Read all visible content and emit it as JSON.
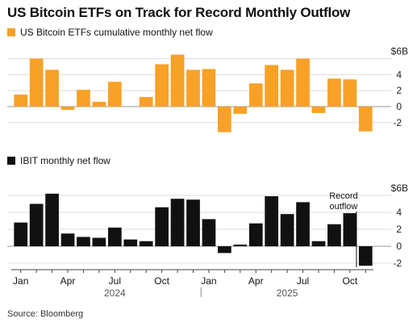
{
  "title": "US Bitcoin ETFs on Track for Record Monthly Outflow",
  "source": "Source: Bloomberg",
  "chart_data": [
    {
      "type": "bar",
      "name": "US Bitcoin ETFs cumulative monthly net flow",
      "color": "#f7a127",
      "categories": [
        "Jan 2024",
        "Feb 2024",
        "Mar 2024",
        "Apr 2024",
        "May 2024",
        "Jun 2024",
        "Jul 2024",
        "Aug 2024",
        "Sep 2024",
        "Oct 2024",
        "Nov 2024",
        "Dec 2024",
        "Jan 2025",
        "Feb 2025",
        "Mar 2025",
        "Apr 2025",
        "May 2025",
        "Jun 2025",
        "Jul 2025",
        "Aug 2025",
        "Sep 2025",
        "Oct 2025",
        "Nov 2025"
      ],
      "values": [
        1.5,
        6.0,
        4.6,
        -0.4,
        2.1,
        0.6,
        3.1,
        0.0,
        1.2,
        5.3,
        6.5,
        4.6,
        4.7,
        -3.2,
        -0.9,
        2.9,
        5.2,
        4.6,
        6.0,
        -0.8,
        3.5,
        3.4,
        -3.1
      ],
      "ylim": [
        -3,
        6.5
      ],
      "yticks": [
        -2,
        0,
        2,
        4
      ],
      "ytick_labels": [
        "-2",
        "0",
        "2",
        "4"
      ],
      "unit_label": "$6B",
      "grid": true
    },
    {
      "type": "bar",
      "name": "IBIT monthly net flow",
      "color": "#111111",
      "categories": [
        "Jan 2024",
        "Feb 2024",
        "Mar 2024",
        "Apr 2024",
        "May 2024",
        "Jun 2024",
        "Jul 2024",
        "Aug 2024",
        "Sep 2024",
        "Oct 2024",
        "Nov 2024",
        "Dec 2024",
        "Jan 2025",
        "Feb 2025",
        "Mar 2025",
        "Apr 2025",
        "May 2025",
        "Jun 2025",
        "Jul 2025",
        "Aug 2025",
        "Sep 2025",
        "Oct 2025",
        "Nov 2025"
      ],
      "values": [
        2.8,
        5.0,
        6.2,
        1.5,
        1.1,
        1.0,
        2.2,
        0.8,
        0.6,
        4.6,
        5.6,
        5.5,
        3.2,
        -0.8,
        0.2,
        2.7,
        5.9,
        3.8,
        5.2,
        0.6,
        2.6,
        3.9,
        -2.3
      ],
      "ylim": [
        -2.5,
        6.5
      ],
      "yticks": [
        -2,
        0,
        2,
        4
      ],
      "ytick_labels": [
        "-2",
        "0",
        "2",
        "4"
      ],
      "unit_label": "$6B",
      "grid": true,
      "annotation": {
        "text": [
          "Record",
          "outflow"
        ],
        "category": "Nov 2025"
      }
    }
  ],
  "x_axis": {
    "month_labels": [
      {
        "label": "Jan",
        "category": "Jan 2024"
      },
      {
        "label": "Apr",
        "category": "Apr 2024"
      },
      {
        "label": "Jul",
        "category": "Jul 2024"
      },
      {
        "label": "Oct",
        "category": "Oct 2024"
      },
      {
        "label": "Jan",
        "category": "Jan 2025"
      },
      {
        "label": "Apr",
        "category": "Apr 2025"
      },
      {
        "label": "Jul",
        "category": "Jul 2025"
      },
      {
        "label": "Oct",
        "category": "Oct 2025"
      }
    ],
    "year_labels": [
      {
        "label": "2024",
        "category": "Jul 2024"
      },
      {
        "label": "2025",
        "category": "Jun 2025"
      }
    ]
  }
}
